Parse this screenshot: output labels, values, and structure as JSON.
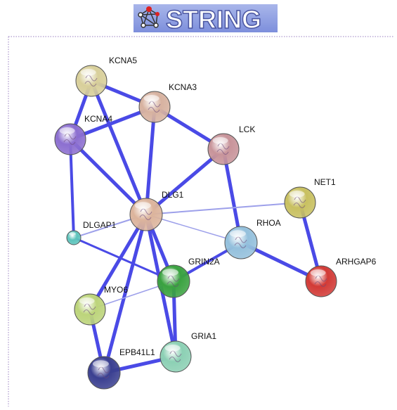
{
  "header": {
    "title": "STRING"
  },
  "nodes": [
    {
      "label": "KCNA5"
    },
    {
      "label": "KCNA3"
    },
    {
      "label": "KCNA4"
    },
    {
      "label": "LCK"
    },
    {
      "label": "DLG1"
    },
    {
      "label": "NET1"
    },
    {
      "label": "DLGAP1"
    },
    {
      "label": "RHOA"
    },
    {
      "label": "ARHGAP6"
    },
    {
      "label": "GRIN2A"
    },
    {
      "label": "MYO6"
    },
    {
      "label": "GRIA1"
    },
    {
      "label": "EPB41L1"
    }
  ]
}
